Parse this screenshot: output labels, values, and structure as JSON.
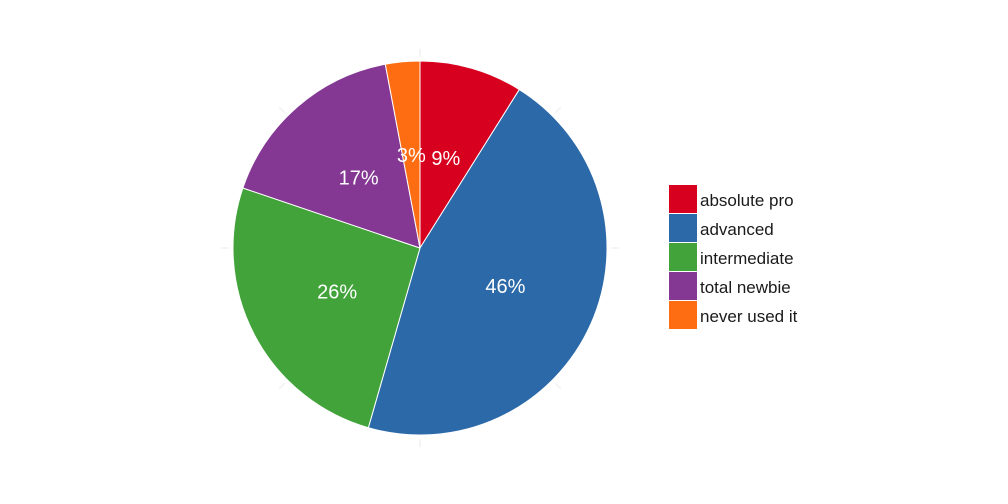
{
  "chart_data": {
    "type": "pie",
    "title": "",
    "slices": [
      {
        "label": "absolute pro",
        "value": 9,
        "value_label": "9%",
        "color": "#d7001f"
      },
      {
        "label": "advanced",
        "value": 46,
        "value_label": "46%",
        "color": "#2b69a8"
      },
      {
        "label": "intermediate",
        "value": 26,
        "value_label": "26%",
        "color": "#42a33b"
      },
      {
        "label": "total newbie",
        "value": 17,
        "value_label": "17%",
        "color": "#843893"
      },
      {
        "label": "never used it",
        "value": 3,
        "value_label": "3%",
        "color": "#ff6d12"
      }
    ],
    "start": "12 o'clock",
    "direction": "clockwise",
    "legend_position": "right"
  }
}
